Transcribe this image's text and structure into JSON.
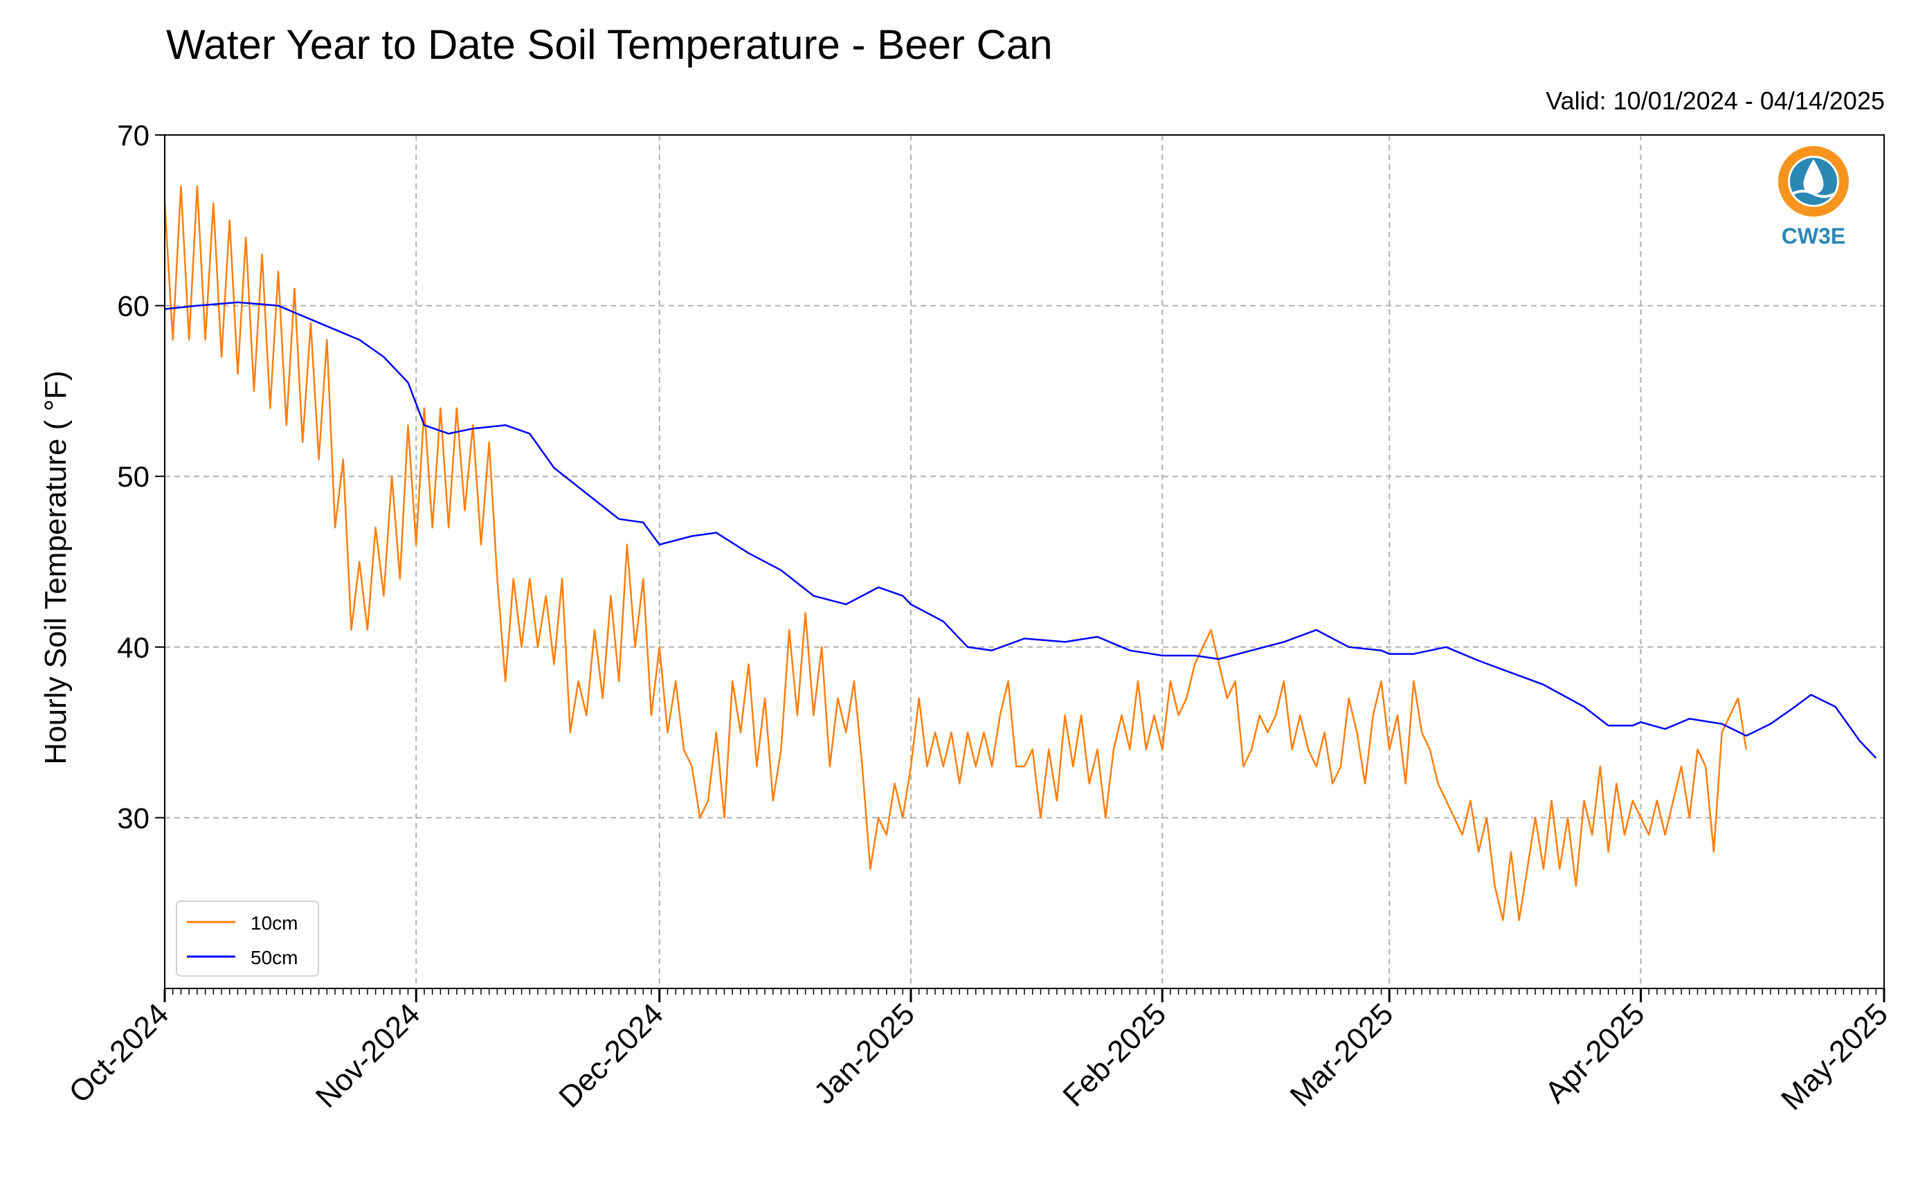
{
  "chart_data": {
    "type": "line",
    "title": "Water Year to Date Soil Temperature - Beer Can",
    "subtitle": "Valid: 10/01/2024 - 04/14/2025",
    "xlabel": "",
    "ylabel": "Hourly Soil Temperature ( °F)",
    "x_type": "date",
    "xlim": [
      "2024-10-01",
      "2025-05-01"
    ],
    "x_ticks": [
      "2024-10-01",
      "2024-11-01",
      "2024-12-01",
      "2025-01-01",
      "2025-02-01",
      "2025-03-01",
      "2025-04-01",
      "2025-05-01"
    ],
    "x_tick_labels": [
      "Oct-2024",
      "Nov-2024",
      "Dec-2024",
      "Jan-2025",
      "Feb-2025",
      "Mar-2025",
      "Apr-2025",
      "May-2025"
    ],
    "ylim": [
      20,
      70
    ],
    "y_ticks": [
      30,
      40,
      50,
      60,
      70
    ],
    "grid": true,
    "legend_position": "lower-left",
    "series": [
      {
        "name": "10cm",
        "color": "#ff7f0e",
        "points": [
          [
            "2024-10-01",
            66
          ],
          [
            "2024-10-02",
            58
          ],
          [
            "2024-10-03",
            67
          ],
          [
            "2024-10-04",
            58
          ],
          [
            "2024-10-05",
            67
          ],
          [
            "2024-10-06",
            58
          ],
          [
            "2024-10-07",
            66
          ],
          [
            "2024-10-08",
            57
          ],
          [
            "2024-10-09",
            65
          ],
          [
            "2024-10-10",
            56
          ],
          [
            "2024-10-11",
            64
          ],
          [
            "2024-10-12",
            55
          ],
          [
            "2024-10-13",
            63
          ],
          [
            "2024-10-14",
            54
          ],
          [
            "2024-10-15",
            62
          ],
          [
            "2024-10-16",
            53
          ],
          [
            "2024-10-17",
            61
          ],
          [
            "2024-10-18",
            52
          ],
          [
            "2024-10-19",
            59
          ],
          [
            "2024-10-20",
            51
          ],
          [
            "2024-10-21",
            58
          ],
          [
            "2024-10-22",
            47
          ],
          [
            "2024-10-23",
            51
          ],
          [
            "2024-10-24",
            41
          ],
          [
            "2024-10-25",
            45
          ],
          [
            "2024-10-26",
            41
          ],
          [
            "2024-10-27",
            47
          ],
          [
            "2024-10-28",
            43
          ],
          [
            "2024-10-29",
            50
          ],
          [
            "2024-10-30",
            44
          ],
          [
            "2024-10-31",
            53
          ],
          [
            "2024-11-01",
            46
          ],
          [
            "2024-11-02",
            54
          ],
          [
            "2024-11-03",
            47
          ],
          [
            "2024-11-04",
            54
          ],
          [
            "2024-11-05",
            47
          ],
          [
            "2024-11-06",
            54
          ],
          [
            "2024-11-07",
            48
          ],
          [
            "2024-11-08",
            53
          ],
          [
            "2024-11-09",
            46
          ],
          [
            "2024-11-10",
            52
          ],
          [
            "2024-11-11",
            44
          ],
          [
            "2024-11-12",
            38
          ],
          [
            "2024-11-13",
            44
          ],
          [
            "2024-11-14",
            40
          ],
          [
            "2024-11-15",
            44
          ],
          [
            "2024-11-16",
            40
          ],
          [
            "2024-11-17",
            43
          ],
          [
            "2024-11-18",
            39
          ],
          [
            "2024-11-19",
            44
          ],
          [
            "2024-11-20",
            35
          ],
          [
            "2024-11-21",
            38
          ],
          [
            "2024-11-22",
            36
          ],
          [
            "2024-11-23",
            41
          ],
          [
            "2024-11-24",
            37
          ],
          [
            "2024-11-25",
            43
          ],
          [
            "2024-11-26",
            38
          ],
          [
            "2024-11-27",
            46
          ],
          [
            "2024-11-28",
            40
          ],
          [
            "2024-11-29",
            44
          ],
          [
            "2024-11-30",
            36
          ],
          [
            "2024-12-01",
            40
          ],
          [
            "2024-12-02",
            35
          ],
          [
            "2024-12-03",
            38
          ],
          [
            "2024-12-04",
            34
          ],
          [
            "2024-12-05",
            33
          ],
          [
            "2024-12-06",
            30
          ],
          [
            "2024-12-07",
            31
          ],
          [
            "2024-12-08",
            35
          ],
          [
            "2024-12-09",
            30
          ],
          [
            "2024-12-10",
            38
          ],
          [
            "2024-12-11",
            35
          ],
          [
            "2024-12-12",
            39
          ],
          [
            "2024-12-13",
            33
          ],
          [
            "2024-12-14",
            37
          ],
          [
            "2024-12-15",
            31
          ],
          [
            "2024-12-16",
            34
          ],
          [
            "2024-12-17",
            41
          ],
          [
            "2024-12-18",
            36
          ],
          [
            "2024-12-19",
            42
          ],
          [
            "2024-12-20",
            36
          ],
          [
            "2024-12-21",
            40
          ],
          [
            "2024-12-22",
            33
          ],
          [
            "2024-12-23",
            37
          ],
          [
            "2024-12-24",
            35
          ],
          [
            "2024-12-25",
            38
          ],
          [
            "2024-12-26",
            33
          ],
          [
            "2024-12-27",
            27
          ],
          [
            "2024-12-28",
            30
          ],
          [
            "2024-12-29",
            29
          ],
          [
            "2024-12-30",
            32
          ],
          [
            "2024-12-31",
            30
          ],
          [
            "2025-01-01",
            33
          ],
          [
            "2025-01-02",
            37
          ],
          [
            "2025-01-03",
            33
          ],
          [
            "2025-01-04",
            35
          ],
          [
            "2025-01-05",
            33
          ],
          [
            "2025-01-06",
            35
          ],
          [
            "2025-01-07",
            32
          ],
          [
            "2025-01-08",
            35
          ],
          [
            "2025-01-09",
            33
          ],
          [
            "2025-01-10",
            35
          ],
          [
            "2025-01-11",
            33
          ],
          [
            "2025-01-12",
            36
          ],
          [
            "2025-01-13",
            38
          ],
          [
            "2025-01-14",
            33
          ],
          [
            "2025-01-15",
            33
          ],
          [
            "2025-01-16",
            34
          ],
          [
            "2025-01-17",
            30
          ],
          [
            "2025-01-18",
            34
          ],
          [
            "2025-01-19",
            31
          ],
          [
            "2025-01-20",
            36
          ],
          [
            "2025-01-21",
            33
          ],
          [
            "2025-01-22",
            36
          ],
          [
            "2025-01-23",
            32
          ],
          [
            "2025-01-24",
            34
          ],
          [
            "2025-01-25",
            30
          ],
          [
            "2025-01-26",
            34
          ],
          [
            "2025-01-27",
            36
          ],
          [
            "2025-01-28",
            34
          ],
          [
            "2025-01-29",
            38
          ],
          [
            "2025-01-30",
            34
          ],
          [
            "2025-01-31",
            36
          ],
          [
            "2025-02-01",
            34
          ],
          [
            "2025-02-02",
            38
          ],
          [
            "2025-02-03",
            36
          ],
          [
            "2025-02-04",
            37
          ],
          [
            "2025-02-05",
            39
          ],
          [
            "2025-02-06",
            40
          ],
          [
            "2025-02-07",
            41
          ],
          [
            "2025-02-08",
            39
          ],
          [
            "2025-02-09",
            37
          ],
          [
            "2025-02-10",
            38
          ],
          [
            "2025-02-11",
            33
          ],
          [
            "2025-02-12",
            34
          ],
          [
            "2025-02-13",
            36
          ],
          [
            "2025-02-14",
            35
          ],
          [
            "2025-02-15",
            36
          ],
          [
            "2025-02-16",
            38
          ],
          [
            "2025-02-17",
            34
          ],
          [
            "2025-02-18",
            36
          ],
          [
            "2025-02-19",
            34
          ],
          [
            "2025-02-20",
            33
          ],
          [
            "2025-02-21",
            35
          ],
          [
            "2025-02-22",
            32
          ],
          [
            "2025-02-23",
            33
          ],
          [
            "2025-02-24",
            37
          ],
          [
            "2025-02-25",
            35
          ],
          [
            "2025-02-26",
            32
          ],
          [
            "2025-02-27",
            36
          ],
          [
            "2025-02-28",
            38
          ],
          [
            "2025-03-01",
            34
          ],
          [
            "2025-03-02",
            36
          ],
          [
            "2025-03-03",
            32
          ],
          [
            "2025-03-04",
            38
          ],
          [
            "2025-03-05",
            35
          ],
          [
            "2025-03-06",
            34
          ],
          [
            "2025-03-07",
            32
          ],
          [
            "2025-03-08",
            31
          ],
          [
            "2025-03-09",
            30
          ],
          [
            "2025-03-10",
            29
          ],
          [
            "2025-03-11",
            31
          ],
          [
            "2025-03-12",
            28
          ],
          [
            "2025-03-13",
            30
          ],
          [
            "2025-03-14",
            26
          ],
          [
            "2025-03-15",
            24
          ],
          [
            "2025-03-16",
            28
          ],
          [
            "2025-03-17",
            24
          ],
          [
            "2025-03-18",
            27
          ],
          [
            "2025-03-19",
            30
          ],
          [
            "2025-03-20",
            27
          ],
          [
            "2025-03-21",
            31
          ],
          [
            "2025-03-22",
            27
          ],
          [
            "2025-03-23",
            30
          ],
          [
            "2025-03-24",
            26
          ],
          [
            "2025-03-25",
            31
          ],
          [
            "2025-03-26",
            29
          ],
          [
            "2025-03-27",
            33
          ],
          [
            "2025-03-28",
            28
          ],
          [
            "2025-03-29",
            32
          ],
          [
            "2025-03-30",
            29
          ],
          [
            "2025-03-31",
            31
          ],
          [
            "2025-04-01",
            30
          ],
          [
            "2025-04-02",
            29
          ],
          [
            "2025-04-03",
            31
          ],
          [
            "2025-04-04",
            29
          ],
          [
            "2025-04-05",
            31
          ],
          [
            "2025-04-06",
            33
          ],
          [
            "2025-04-07",
            30
          ],
          [
            "2025-04-08",
            34
          ],
          [
            "2025-04-09",
            33
          ],
          [
            "2025-04-10",
            28
          ],
          [
            "2025-04-11",
            35
          ],
          [
            "2025-04-12",
            36
          ],
          [
            "2025-04-13",
            37
          ],
          [
            "2025-04-14",
            34
          ]
        ]
      },
      {
        "name": "50cm",
        "color": "#0000ff",
        "points": [
          [
            "2024-10-01",
            59.8
          ],
          [
            "2024-10-05",
            60.0
          ],
          [
            "2024-10-10",
            60.2
          ],
          [
            "2024-10-15",
            60.0
          ],
          [
            "2024-10-20",
            59.0
          ],
          [
            "2024-10-25",
            58.0
          ],
          [
            "2024-10-28",
            57.0
          ],
          [
            "2024-10-31",
            55.5
          ],
          [
            "2024-11-02",
            53.0
          ],
          [
            "2024-11-05",
            52.5
          ],
          [
            "2024-11-08",
            52.8
          ],
          [
            "2024-11-12",
            53.0
          ],
          [
            "2024-11-15",
            52.5
          ],
          [
            "2024-11-18",
            50.5
          ],
          [
            "2024-11-22",
            49.0
          ],
          [
            "2024-11-26",
            47.5
          ],
          [
            "2024-11-29",
            47.3
          ],
          [
            "2024-12-01",
            46.0
          ],
          [
            "2024-12-05",
            46.5
          ],
          [
            "2024-12-08",
            46.7
          ],
          [
            "2024-12-12",
            45.5
          ],
          [
            "2024-12-16",
            44.5
          ],
          [
            "2024-12-20",
            43.0
          ],
          [
            "2024-12-24",
            42.5
          ],
          [
            "2024-12-28",
            43.5
          ],
          [
            "2024-12-31",
            43.0
          ],
          [
            "2025-01-01",
            42.5
          ],
          [
            "2025-01-05",
            41.5
          ],
          [
            "2025-01-08",
            40.0
          ],
          [
            "2025-01-11",
            39.8
          ],
          [
            "2025-01-15",
            40.5
          ],
          [
            "2025-01-20",
            40.3
          ],
          [
            "2025-01-24",
            40.6
          ],
          [
            "2025-01-28",
            39.8
          ],
          [
            "2025-02-01",
            39.5
          ],
          [
            "2025-02-05",
            39.5
          ],
          [
            "2025-02-08",
            39.3
          ],
          [
            "2025-02-12",
            39.8
          ],
          [
            "2025-02-16",
            40.3
          ],
          [
            "2025-02-20",
            41.0
          ],
          [
            "2025-02-24",
            40.0
          ],
          [
            "2025-02-28",
            39.8
          ],
          [
            "2025-03-01",
            39.6
          ],
          [
            "2025-03-04",
            39.6
          ],
          [
            "2025-03-08",
            40.0
          ],
          [
            "2025-03-12",
            39.2
          ],
          [
            "2025-03-16",
            38.5
          ],
          [
            "2025-03-20",
            37.8
          ],
          [
            "2025-03-25",
            36.5
          ],
          [
            "2025-03-28",
            35.4
          ],
          [
            "2025-03-31",
            35.4
          ],
          [
            "2025-04-01",
            35.6
          ],
          [
            "2025-04-04",
            35.2
          ],
          [
            "2025-04-07",
            35.8
          ],
          [
            "2025-04-11",
            35.5
          ],
          [
            "2025-04-14",
            34.8
          ],
          [
            "2025-04-17",
            35.5
          ],
          [
            "2025-04-20",
            36.5
          ],
          [
            "2025-04-22",
            37.2
          ],
          [
            "2025-04-25",
            36.5
          ],
          [
            "2025-04-28",
            34.5
          ],
          [
            "2025-04-30",
            33.5
          ]
        ]
      }
    ]
  },
  "logo": {
    "text": "CW3E",
    "color": "#2b87b3",
    "accent": "#f7941d"
  }
}
